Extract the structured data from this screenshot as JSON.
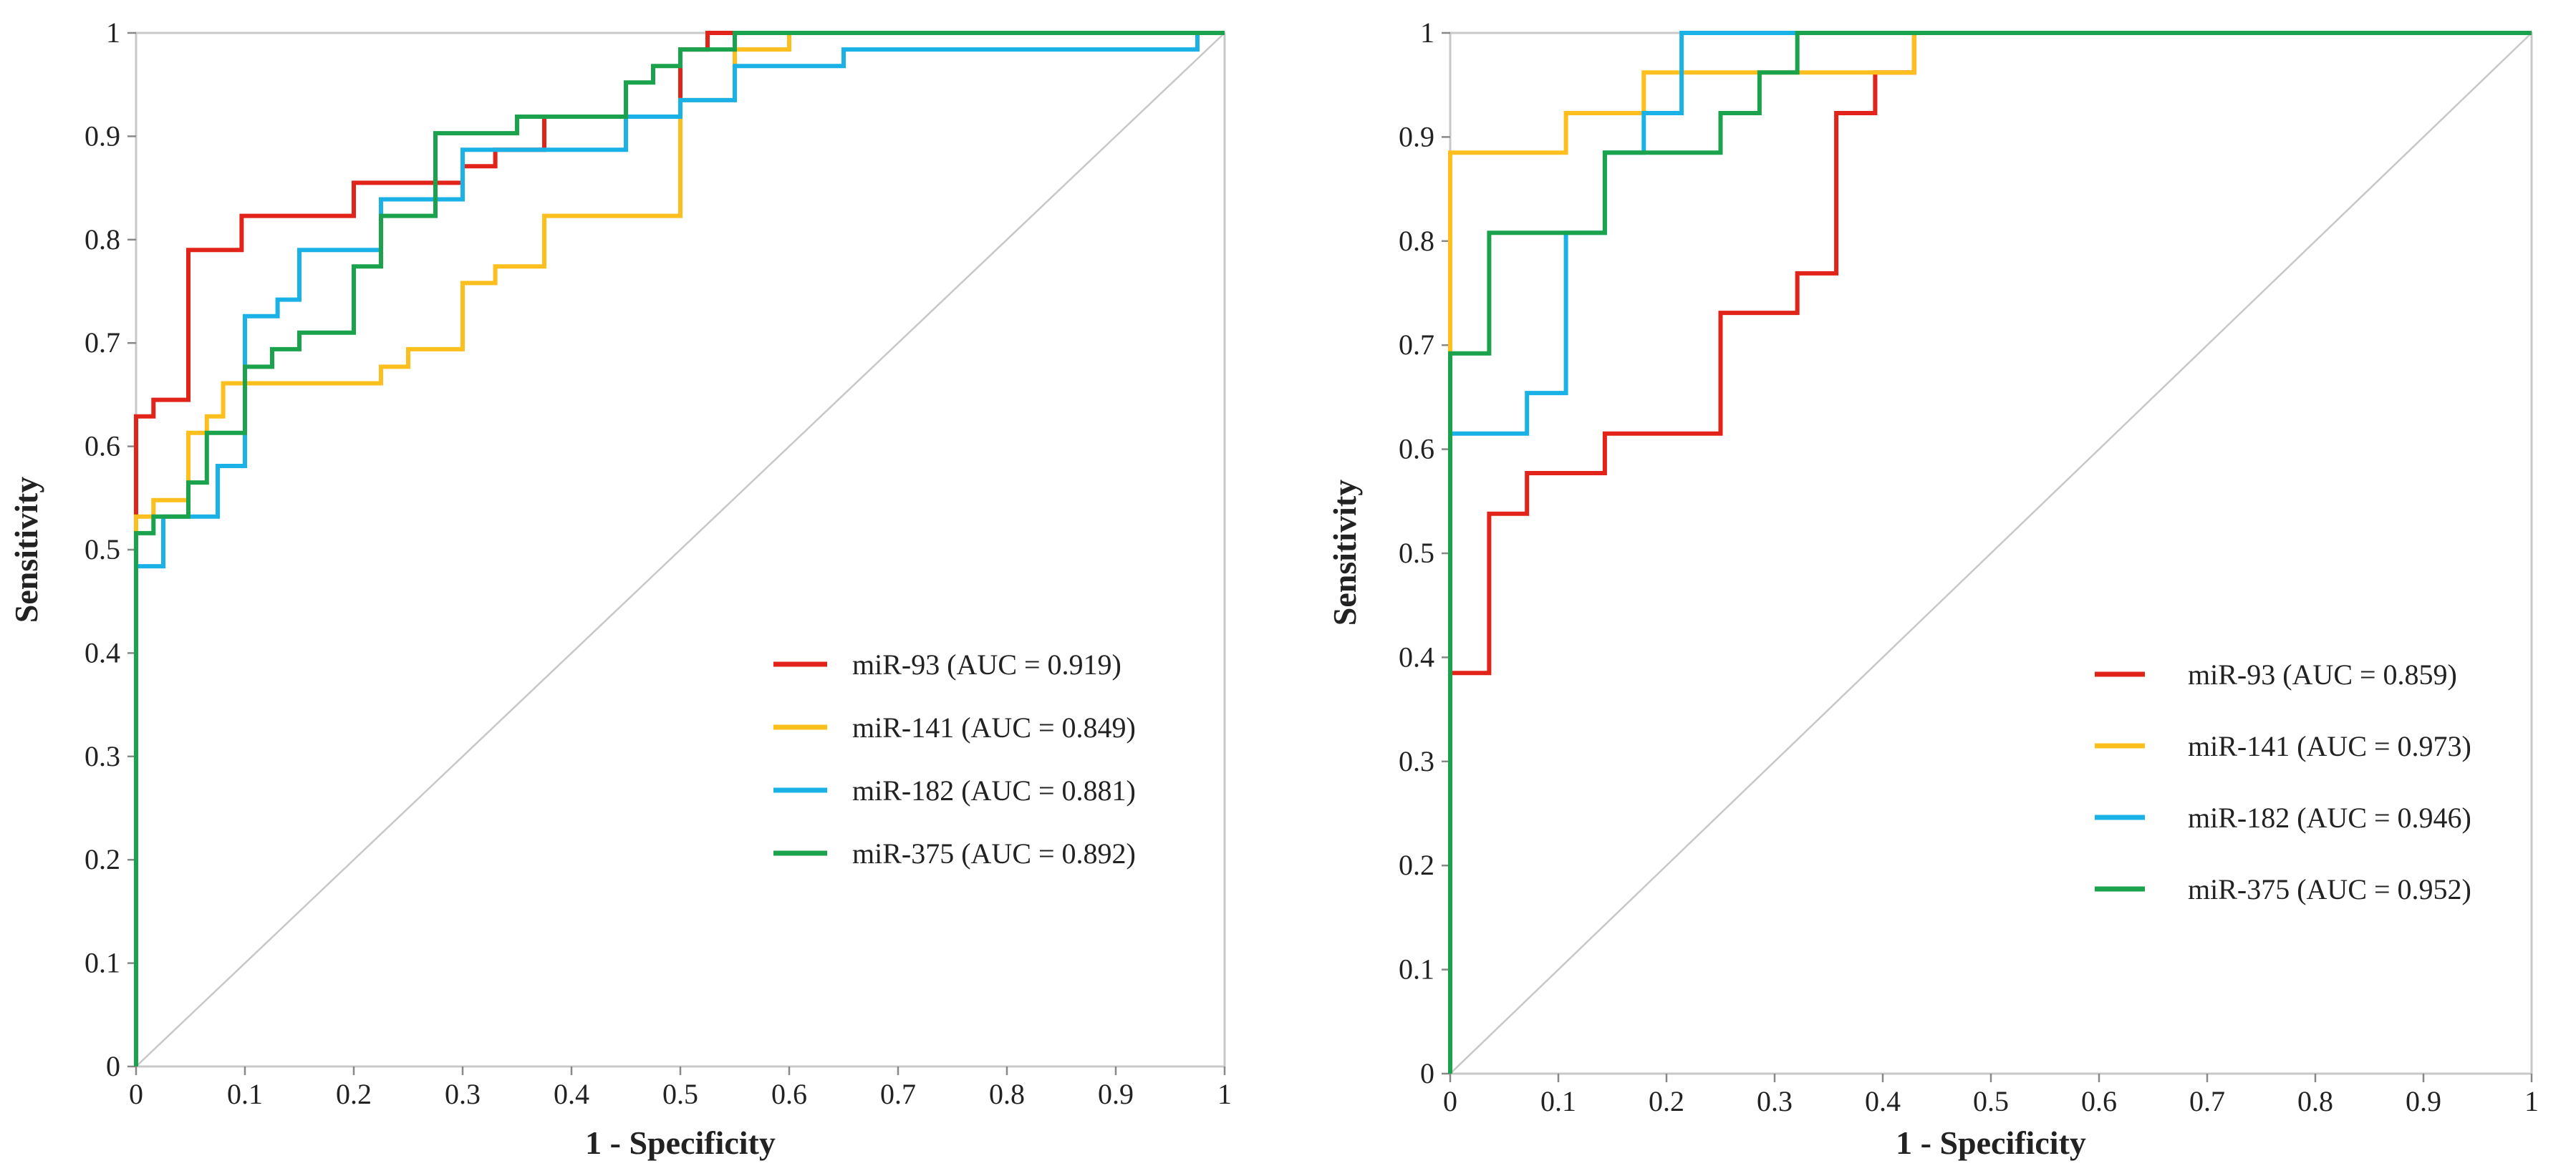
{
  "chart_data": [
    {
      "type": "line",
      "title": "",
      "xlabel": "1 - Specificity",
      "ylabel": "Sensitivity",
      "xlim": [
        0,
        1
      ],
      "ylim": [
        0,
        1
      ],
      "x_ticks": [
        "0",
        "0.1",
        "0.2",
        "0.3",
        "0.4",
        "0.5",
        "0.6",
        "0.7",
        "0.8",
        "0.9",
        "1"
      ],
      "y_ticks": [
        "0",
        "0.1",
        "0.2",
        "0.3",
        "0.4",
        "0.5",
        "0.6",
        "0.7",
        "0.8",
        "0.9",
        "1"
      ],
      "grid": false,
      "legend_position": "bottom-right",
      "reference_line": {
        "x": [
          0,
          1
        ],
        "y": [
          0,
          1
        ],
        "color": "#c8c8c8"
      },
      "series": [
        {
          "name": "miR-93 (AUC = 0.919)",
          "color": "#e2231a",
          "x": [
            0,
            0,
            0.016,
            0.016,
            0.048,
            0.048,
            0.097,
            0.097,
            0.2,
            0.2,
            0.3,
            0.3,
            0.33,
            0.33,
            0.375,
            0.375,
            0.5,
            0.5,
            0.525,
            0.525,
            0.6,
            1
          ],
          "y": [
            0.516,
            0.629,
            0.629,
            0.645,
            0.645,
            0.79,
            0.79,
            0.823,
            0.823,
            0.855,
            0.855,
            0.871,
            0.871,
            0.887,
            0.887,
            0.919,
            0.919,
            0.984,
            0.984,
            1,
            1,
            1
          ]
        },
        {
          "name": "miR-141 (AUC = 0.849)",
          "color": "#fcbf1e",
          "x": [
            0,
            0,
            0.016,
            0.016,
            0.048,
            0.048,
            0.065,
            0.065,
            0.08,
            0.08,
            0.225,
            0.225,
            0.25,
            0.25,
            0.3,
            0.3,
            0.33,
            0.33,
            0.375,
            0.375,
            0.5,
            0.5,
            0.55,
            0.55,
            0.6,
            0.6,
            1
          ],
          "y": [
            0.5,
            0.532,
            0.532,
            0.548,
            0.548,
            0.613,
            0.613,
            0.629,
            0.629,
            0.661,
            0.661,
            0.677,
            0.677,
            0.694,
            0.694,
            0.758,
            0.758,
            0.774,
            0.774,
            0.823,
            0.823,
            0.935,
            0.935,
            0.984,
            0.984,
            1,
            1
          ]
        },
        {
          "name": "miR-182 (AUC = 0.881)",
          "color": "#1ab1e6",
          "x": [
            0,
            0,
            0.025,
            0.025,
            0.048,
            0.048,
            0.075,
            0.075,
            0.1,
            0.1,
            0.13,
            0.13,
            0.15,
            0.15,
            0.225,
            0.225,
            0.3,
            0.3,
            0.45,
            0.45,
            0.5,
            0.5,
            0.55,
            0.55,
            0.65,
            0.65,
            0.975,
            0.975,
            1
          ],
          "y": [
            0.467,
            0.484,
            0.484,
            0.532,
            0.532,
            0.532,
            0.532,
            0.581,
            0.581,
            0.726,
            0.726,
            0.742,
            0.742,
            0.79,
            0.79,
            0.839,
            0.839,
            0.887,
            0.887,
            0.919,
            0.919,
            0.935,
            0.935,
            0.968,
            0.968,
            0.984,
            0.984,
            1,
            1
          ]
        },
        {
          "name": "miR-375 (AUC = 0.892)",
          "color": "#1ba24c",
          "x": [
            0,
            0,
            0.016,
            0.016,
            0.048,
            0.048,
            0.065,
            0.065,
            0.1,
            0.1,
            0.125,
            0.125,
            0.15,
            0.15,
            0.2,
            0.2,
            0.225,
            0.225,
            0.275,
            0.275,
            0.35,
            0.35,
            0.45,
            0.45,
            0.475,
            0.475,
            0.5,
            0.5,
            0.55,
            0.55,
            1
          ],
          "y": [
            0,
            0.516,
            0.516,
            0.532,
            0.532,
            0.565,
            0.565,
            0.613,
            0.613,
            0.677,
            0.677,
            0.694,
            0.694,
            0.71,
            0.71,
            0.774,
            0.774,
            0.823,
            0.823,
            0.903,
            0.903,
            0.919,
            0.919,
            0.952,
            0.952,
            0.968,
            0.968,
            0.984,
            0.984,
            1,
            1
          ]
        }
      ]
    },
    {
      "type": "line",
      "title": "",
      "xlabel": "1 - Specificity",
      "ylabel": "Sensitivity",
      "xlim": [
        0,
        1
      ],
      "ylim": [
        0,
        1
      ],
      "x_ticks": [
        "0",
        "0.1",
        "0.2",
        "0.3",
        "0.4",
        "0.5",
        "0.6",
        "0.7",
        "0.8",
        "0.9",
        "1"
      ],
      "y_ticks": [
        "0",
        "0.1",
        "0.2",
        "0.3",
        "0.4",
        "0.5",
        "0.6",
        "0.7",
        "0.8",
        "0.9",
        "1"
      ],
      "grid": false,
      "legend_position": "bottom-right",
      "reference_line": {
        "x": [
          0,
          1
        ],
        "y": [
          0,
          1
        ],
        "color": "#c8c8c8"
      },
      "series": [
        {
          "name": "miR-93 (AUC = 0.859)",
          "color": "#e2231a",
          "x": [
            0,
            0,
            0.036,
            0.036,
            0.071,
            0.071,
            0.143,
            0.143,
            0.25,
            0.25,
            0.321,
            0.321,
            0.357,
            0.357,
            0.393,
            0.393,
            0.429,
            0.429,
            1
          ],
          "y": [
            0,
            0.385,
            0.385,
            0.538,
            0.538,
            0.577,
            0.577,
            0.615,
            0.615,
            0.731,
            0.731,
            0.769,
            0.769,
            0.923,
            0.923,
            0.962,
            0.962,
            1,
            1
          ]
        },
        {
          "name": "miR-141 (AUC = 0.973)",
          "color": "#fcbf1e",
          "x": [
            0,
            0,
            0.107,
            0.107,
            0.179,
            0.179,
            0.429,
            0.429,
            1
          ],
          "y": [
            0.692,
            0.885,
            0.885,
            0.923,
            0.923,
            0.962,
            0.962,
            1,
            1
          ]
        },
        {
          "name": "miR-182 (AUC = 0.946)",
          "color": "#1ab1e6",
          "x": [
            0,
            0,
            0.071,
            0.071,
            0.107,
            0.107,
            0.143,
            0.143,
            0.179,
            0.179,
            0.214,
            0.214,
            1
          ],
          "y": [
            0,
            0.615,
            0.615,
            0.654,
            0.654,
            0.808,
            0.808,
            0.885,
            0.885,
            0.923,
            0.923,
            1,
            1
          ]
        },
        {
          "name": "miR-375 (AUC = 0.952)",
          "color": "#1ba24c",
          "x": [
            0,
            0,
            0.036,
            0.036,
            0.143,
            0.143,
            0.25,
            0.25,
            0.286,
            0.286,
            0.321,
            0.321,
            1
          ],
          "y": [
            0,
            0.692,
            0.692,
            0.808,
            0.808,
            0.885,
            0.885,
            0.923,
            0.923,
            0.962,
            0.962,
            1,
            1
          ]
        }
      ]
    }
  ]
}
